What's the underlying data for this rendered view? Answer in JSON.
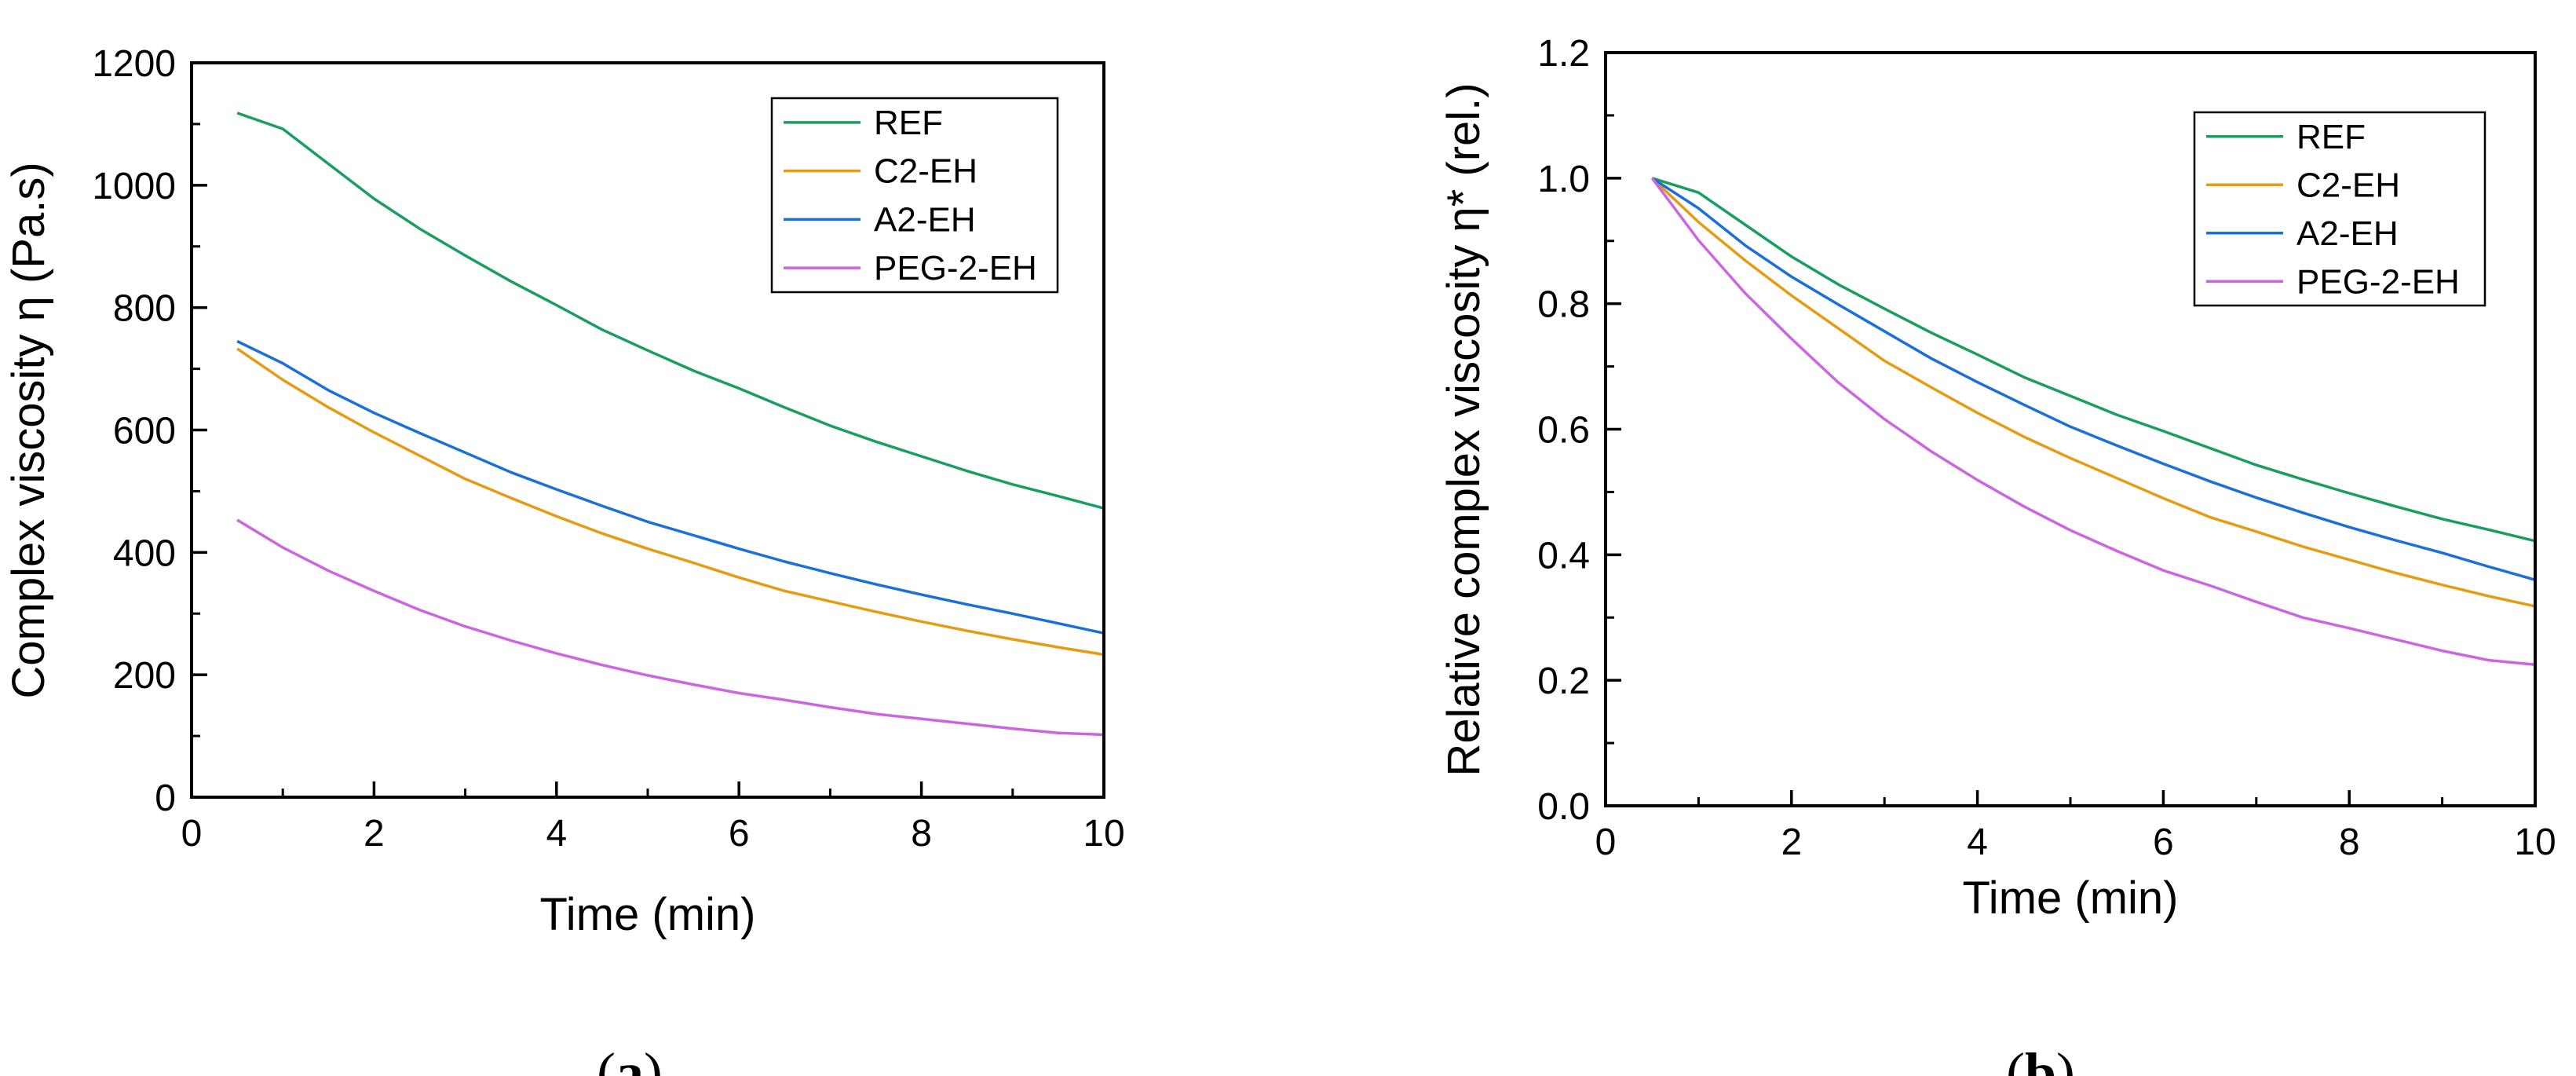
{
  "chart_data": [
    {
      "type": "line",
      "panel": "a",
      "panel_label": "a",
      "title": "",
      "xlabel": "Time (min)",
      "ylabel": "Complex viscosity η (Pa.s)",
      "xlim": [
        0,
        10
      ],
      "ylim": [
        0,
        1200
      ],
      "xticks": [
        0,
        2,
        4,
        6,
        8,
        10
      ],
      "yticks": [
        0,
        200,
        400,
        600,
        800,
        1000,
        1200
      ],
      "grid": false,
      "legend_position": "top-right",
      "x": [
        0.5,
        1,
        1.5,
        2,
        2.5,
        3,
        3.5,
        4,
        4.5,
        5,
        5.5,
        6,
        6.5,
        7,
        7.5,
        8,
        8.5,
        9,
        9.5,
        10
      ],
      "series": [
        {
          "name": "REF",
          "color": "#1a9e5f",
          "values": [
            1118,
            1092,
            1035,
            978,
            929,
            885,
            843,
            804,
            764,
            730,
            697,
            668,
            637,
            607,
            581,
            557,
            533,
            511,
            492,
            472
          ]
        },
        {
          "name": "C2-EH",
          "color": "#e69c12",
          "values": [
            733,
            682,
            637,
            596,
            558,
            520,
            489,
            459,
            431,
            406,
            383,
            359,
            337,
            320,
            303,
            287,
            272,
            258,
            245,
            233
          ]
        },
        {
          "name": "A2-EH",
          "color": "#1a6fd9",
          "values": [
            745,
            709,
            665,
            628,
            595,
            563,
            531,
            503,
            476,
            450,
            428,
            406,
            385,
            366,
            348,
            331,
            315,
            300,
            284,
            268
          ]
        },
        {
          "name": "PEG-2-EH",
          "color": "#cc66e0",
          "values": [
            453,
            408,
            370,
            337,
            306,
            279,
            256,
            235,
            216,
            199,
            184,
            170,
            159,
            147,
            136,
            128,
            120,
            112,
            105,
            102
          ]
        }
      ]
    },
    {
      "type": "line",
      "panel": "b",
      "panel_label": "b",
      "title": "",
      "xlabel": "Time (min)",
      "ylabel": "Relative complex viscosity η* (rel.)",
      "xlim": [
        0,
        10
      ],
      "ylim": [
        0,
        1.2
      ],
      "xticks": [
        0,
        2,
        4,
        6,
        8,
        10
      ],
      "yticks": [
        "0.0",
        "0.2",
        "0.4",
        "0.6",
        "0.8",
        "1.0",
        "1.2"
      ],
      "grid": false,
      "legend_position": "top-right",
      "x": [
        0.5,
        1,
        1.5,
        2,
        2.5,
        3,
        3.5,
        4,
        4.5,
        5,
        5.5,
        6,
        6.5,
        7,
        7.5,
        8,
        8.5,
        9,
        9.5,
        10
      ],
      "series": [
        {
          "name": "REF",
          "color": "#1a9e5f",
          "values": [
            1.0,
            0.977,
            0.926,
            0.875,
            0.831,
            0.792,
            0.754,
            0.719,
            0.683,
            0.653,
            0.623,
            0.597,
            0.57,
            0.543,
            0.52,
            0.498,
            0.477,
            0.457,
            0.44,
            0.422
          ]
        },
        {
          "name": "C2-EH",
          "color": "#e69c12",
          "values": [
            1.0,
            0.93,
            0.869,
            0.813,
            0.761,
            0.709,
            0.667,
            0.626,
            0.588,
            0.554,
            0.522,
            0.49,
            0.46,
            0.437,
            0.413,
            0.392,
            0.371,
            0.352,
            0.334,
            0.318
          ]
        },
        {
          "name": "A2-EH",
          "color": "#1a6fd9",
          "values": [
            1.0,
            0.952,
            0.893,
            0.843,
            0.799,
            0.756,
            0.713,
            0.675,
            0.639,
            0.604,
            0.574,
            0.545,
            0.517,
            0.491,
            0.467,
            0.444,
            0.423,
            0.403,
            0.381,
            0.36
          ]
        },
        {
          "name": "PEG-2-EH",
          "color": "#cc66e0",
          "values": [
            1.0,
            0.901,
            0.817,
            0.744,
            0.675,
            0.616,
            0.565,
            0.519,
            0.477,
            0.439,
            0.406,
            0.375,
            0.351,
            0.325,
            0.3,
            0.283,
            0.265,
            0.247,
            0.232,
            0.225
          ]
        }
      ]
    }
  ]
}
